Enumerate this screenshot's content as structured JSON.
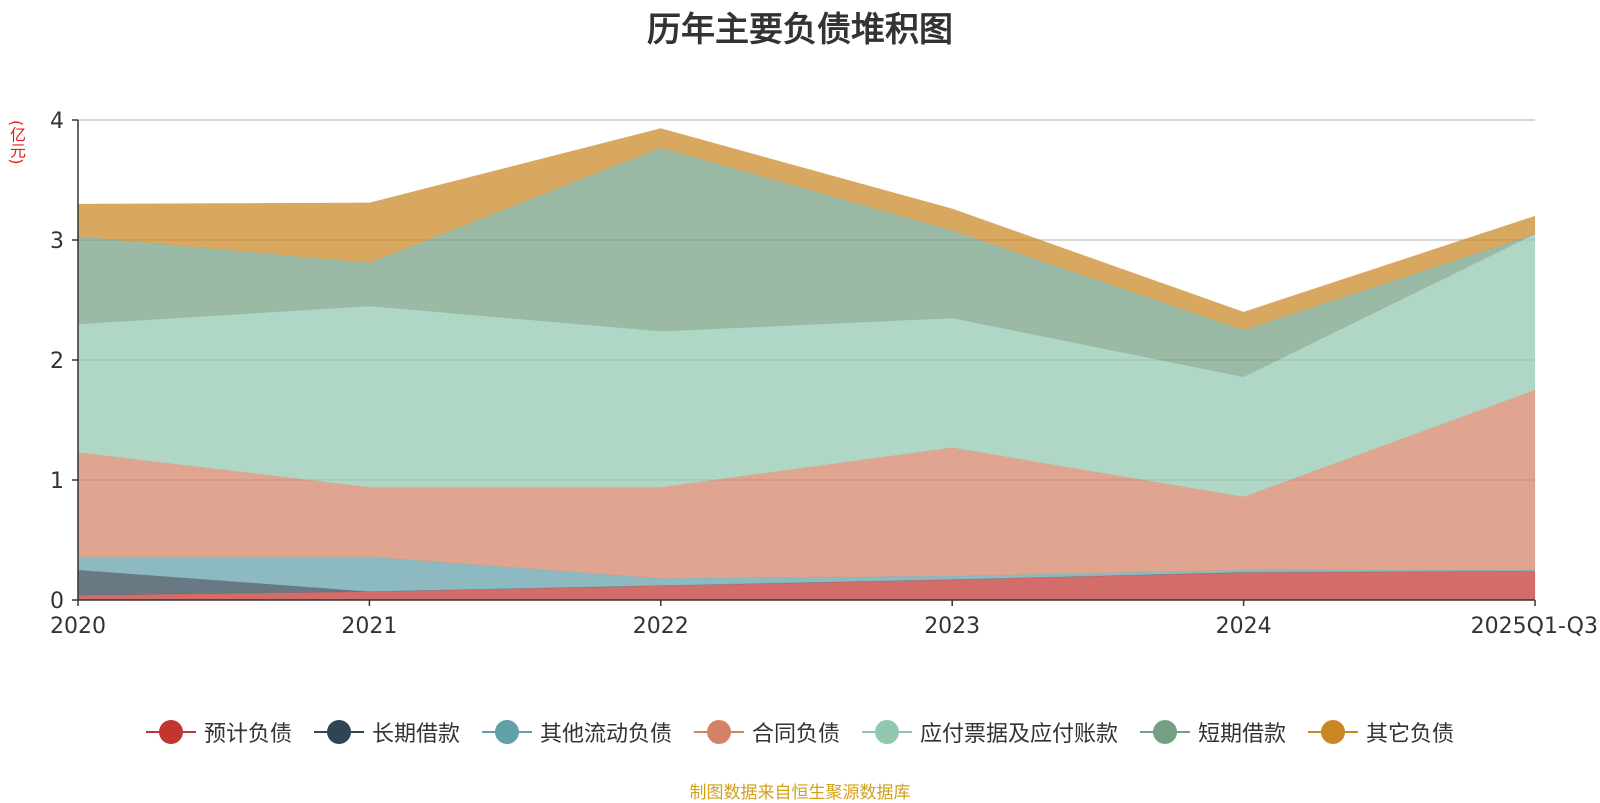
{
  "chart_data": {
    "type": "area",
    "stacked": true,
    "title": "历年主要负债堆积图",
    "ylabel": "(亿元)",
    "xlabel": "",
    "categories": [
      "2020",
      "2021",
      "2022",
      "2023",
      "2024",
      "2025Q1-Q3"
    ],
    "ylim": [
      0,
      4
    ],
    "yticks": [
      0,
      1,
      2,
      3,
      4
    ],
    "grid": true,
    "legend_position": "bottom",
    "series": [
      {
        "name": "预计负债",
        "color": "#c23531",
        "values": [
          0.04,
          0.07,
          0.12,
          0.17,
          0.23,
          0.24
        ]
      },
      {
        "name": "长期借款",
        "color": "#2f4554",
        "values": [
          0.21,
          0.0,
          0.0,
          0.0,
          0.0,
          0.0
        ]
      },
      {
        "name": "其他流动负债",
        "color": "#61a0a8",
        "values": [
          0.11,
          0.29,
          0.06,
          0.03,
          0.02,
          0.01
        ]
      },
      {
        "name": "合同负债",
        "color": "#d48265",
        "values": [
          0.87,
          0.58,
          0.76,
          1.07,
          0.61,
          1.5
        ]
      },
      {
        "name": "应付票据及应付账款",
        "color": "#91c7ae",
        "values": [
          1.07,
          1.51,
          1.3,
          1.08,
          1.0,
          1.3
        ]
      },
      {
        "name": "短期借款",
        "color": "#749f83",
        "values": [
          0.73,
          0.36,
          1.53,
          0.73,
          0.39,
          0.0
        ]
      },
      {
        "name": "其它负债",
        "color": "#ca8622",
        "values": [
          0.27,
          0.5,
          0.16,
          0.18,
          0.15,
          0.15
        ]
      }
    ]
  },
  "source_note": "制图数据来自恒生聚源数据库"
}
